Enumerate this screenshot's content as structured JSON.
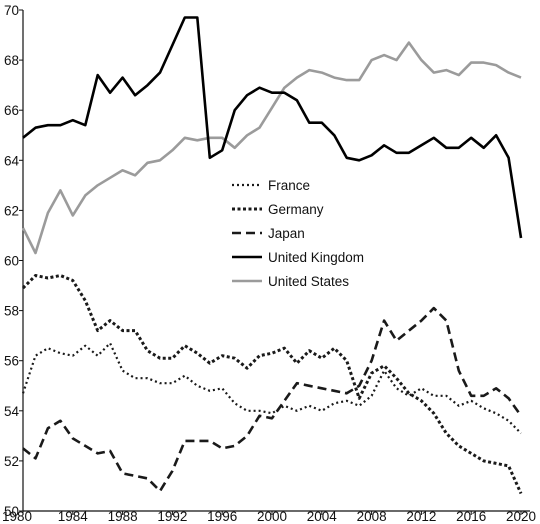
{
  "chart_data": {
    "type": "line",
    "title": "",
    "xlabel": "",
    "ylabel": "",
    "xlim": [
      1980,
      2020
    ],
    "ylim": [
      50,
      70
    ],
    "grid": false,
    "legend_position": "center",
    "x_ticks": [
      "1980",
      "1984",
      "1988",
      "1992",
      "1996",
      "2000",
      "2004",
      "2008",
      "2012",
      "2016",
      "2020"
    ],
    "y_ticks": [
      "50",
      "52",
      "54",
      "56",
      "58",
      "60",
      "62",
      "64",
      "66",
      "68",
      "70"
    ],
    "x": [
      1980,
      1981,
      1982,
      1983,
      1984,
      1985,
      1986,
      1987,
      1988,
      1989,
      1990,
      1991,
      1992,
      1993,
      1994,
      1995,
      1996,
      1997,
      1998,
      1999,
      2000,
      2001,
      2002,
      2003,
      2004,
      2005,
      2006,
      2007,
      2008,
      2009,
      2010,
      2011,
      2012,
      2013,
      2014,
      2015,
      2016,
      2017,
      2018,
      2019,
      2020
    ],
    "series": [
      {
        "name": "France",
        "style": "dotted-fine",
        "color": "#1a1a1a",
        "values": [
          54.7,
          56.2,
          56.5,
          56.3,
          56.2,
          56.6,
          56.2,
          56.7,
          55.6,
          55.3,
          55.3,
          55.1,
          55.1,
          55.4,
          55.0,
          54.8,
          54.9,
          54.3,
          54.0,
          54.0,
          53.9,
          54.2,
          54.0,
          54.2,
          54.0,
          54.3,
          54.4,
          54.2,
          54.6,
          55.6,
          54.9,
          54.6,
          54.9,
          54.6,
          54.6,
          54.2,
          54.4,
          54.1,
          53.9,
          53.6,
          53.1
        ]
      },
      {
        "name": "Germany",
        "style": "dotted-bold",
        "color": "#1a1a1a",
        "values": [
          58.9,
          59.4,
          59.3,
          59.4,
          59.2,
          58.4,
          57.2,
          57.6,
          57.2,
          57.2,
          56.4,
          56.1,
          56.1,
          56.6,
          56.3,
          55.9,
          56.2,
          56.1,
          55.7,
          56.2,
          56.3,
          56.5,
          55.9,
          56.4,
          56.1,
          56.5,
          56.0,
          54.5,
          55.5,
          55.8,
          55.3,
          54.7,
          54.4,
          53.9,
          53.1,
          52.6,
          52.3,
          52.0,
          51.9,
          51.8,
          50.7
        ]
      },
      {
        "name": "Japan",
        "style": "dashed",
        "color": "#1a1a1a",
        "values": [
          52.5,
          52.1,
          53.3,
          53.6,
          52.9,
          52.6,
          52.3,
          52.4,
          51.5,
          51.4,
          51.3,
          50.8,
          51.6,
          52.8,
          52.8,
          52.8,
          52.5,
          52.6,
          53.0,
          53.8,
          53.7,
          54.4,
          55.1,
          55.0,
          54.9,
          54.8,
          54.7,
          55.0,
          56.0,
          57.6,
          56.8,
          57.2,
          57.6,
          58.1,
          57.6,
          55.6,
          54.6,
          54.6,
          54.9,
          54.5,
          53.8
        ]
      },
      {
        "name": "United Kingdom",
        "style": "solid",
        "color": "#000000",
        "values": [
          64.9,
          65.3,
          65.4,
          65.4,
          65.6,
          65.4,
          67.4,
          66.7,
          67.3,
          66.6,
          67.0,
          67.5,
          68.6,
          69.7,
          69.7,
          64.1,
          64.4,
          66.0,
          66.6,
          66.9,
          66.7,
          66.7,
          66.4,
          65.5,
          65.5,
          65.0,
          64.1,
          64.0,
          64.2,
          64.6,
          64.3,
          64.3,
          64.6,
          64.9,
          64.5,
          64.5,
          64.9,
          64.5,
          65.0,
          64.1,
          60.9
        ]
      },
      {
        "name": "United States",
        "style": "solid",
        "color": "#9b9b9b",
        "values": [
          61.3,
          60.3,
          61.9,
          62.8,
          61.8,
          62.6,
          63.0,
          63.3,
          63.6,
          63.4,
          63.9,
          64.0,
          64.4,
          64.9,
          64.8,
          64.9,
          64.9,
          64.5,
          65.0,
          65.3,
          66.1,
          66.9,
          67.3,
          67.6,
          67.5,
          67.3,
          67.2,
          67.2,
          68.0,
          68.2,
          68.0,
          68.7,
          68.0,
          67.5,
          67.6,
          67.4,
          67.9,
          67.9,
          67.8,
          67.5,
          67.3
        ]
      }
    ]
  }
}
